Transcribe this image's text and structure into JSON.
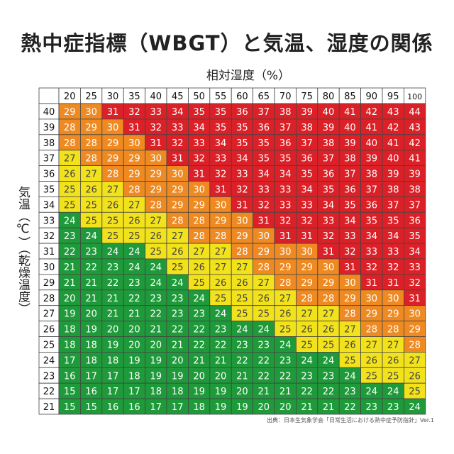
{
  "title": "熱中症指標（WBGT）と気温、湿度の関係",
  "source": "出典：日本生気象学会「日常生活における熱中症予防指針」Ver.1",
  "colors": {
    "green": "#1f9a3b",
    "yellow": "#f2e21b",
    "orange": "#ef8a22",
    "red": "#dc2027",
    "border": "#444444"
  },
  "chart_data": {
    "type": "heatmap",
    "title": "熱中症指標（WBGT）と気温、湿度の関係",
    "xlabel": "相対湿度（%）",
    "ylabel": "気温（℃）（乾燥温度）",
    "x": [
      20,
      25,
      30,
      35,
      40,
      45,
      50,
      55,
      60,
      65,
      70,
      75,
      80,
      85,
      90,
      95,
      100
    ],
    "y": [
      40,
      39,
      38,
      37,
      36,
      35,
      34,
      33,
      32,
      31,
      30,
      29,
      28,
      27,
      26,
      25,
      24,
      23,
      22,
      21
    ],
    "values": [
      [
        29,
        30,
        31,
        32,
        33,
        34,
        35,
        35,
        36,
        37,
        38,
        39,
        40,
        41,
        42,
        43,
        44
      ],
      [
        28,
        29,
        30,
        31,
        32,
        33,
        34,
        35,
        35,
        36,
        37,
        38,
        39,
        40,
        41,
        42,
        43
      ],
      [
        28,
        28,
        29,
        30,
        31,
        32,
        33,
        34,
        35,
        35,
        36,
        37,
        38,
        39,
        40,
        41,
        42
      ],
      [
        27,
        28,
        29,
        29,
        30,
        31,
        32,
        33,
        34,
        35,
        35,
        36,
        37,
        38,
        39,
        40,
        41
      ],
      [
        26,
        27,
        28,
        29,
        29,
        30,
        31,
        32,
        33,
        34,
        34,
        35,
        36,
        37,
        38,
        39,
        39
      ],
      [
        25,
        26,
        27,
        28,
        29,
        29,
        30,
        31,
        32,
        33,
        33,
        34,
        35,
        36,
        37,
        38,
        38
      ],
      [
        25,
        25,
        26,
        27,
        28,
        29,
        29,
        30,
        31,
        32,
        33,
        33,
        34,
        35,
        36,
        37,
        37
      ],
      [
        24,
        25,
        25,
        26,
        27,
        28,
        28,
        29,
        30,
        31,
        32,
        32,
        33,
        34,
        35,
        35,
        36
      ],
      [
        23,
        24,
        25,
        25,
        26,
        27,
        28,
        28,
        29,
        30,
        31,
        31,
        32,
        33,
        34,
        34,
        35
      ],
      [
        22,
        23,
        24,
        24,
        25,
        26,
        27,
        27,
        28,
        29,
        30,
        30,
        31,
        32,
        33,
        33,
        34
      ],
      [
        21,
        22,
        23,
        24,
        24,
        25,
        26,
        27,
        27,
        28,
        29,
        29,
        30,
        31,
        32,
        32,
        33
      ],
      [
        21,
        21,
        22,
        23,
        24,
        24,
        25,
        26,
        26,
        27,
        28,
        29,
        29,
        30,
        31,
        31,
        32
      ],
      [
        20,
        21,
        21,
        22,
        23,
        23,
        24,
        25,
        25,
        26,
        27,
        28,
        28,
        29,
        30,
        30,
        31
      ],
      [
        19,
        20,
        21,
        21,
        22,
        23,
        23,
        24,
        25,
        25,
        26,
        27,
        27,
        28,
        29,
        29,
        30
      ],
      [
        18,
        19,
        20,
        20,
        21,
        22,
        22,
        23,
        24,
        24,
        25,
        26,
        26,
        27,
        28,
        28,
        29
      ],
      [
        18,
        18,
        19,
        20,
        20,
        21,
        22,
        22,
        23,
        23,
        24,
        25,
        25,
        26,
        27,
        27,
        28
      ],
      [
        17,
        18,
        18,
        19,
        19,
        20,
        21,
        21,
        22,
        22,
        23,
        24,
        24,
        25,
        26,
        26,
        27
      ],
      [
        16,
        17,
        17,
        18,
        19,
        19,
        20,
        20,
        21,
        22,
        22,
        23,
        23,
        24,
        25,
        25,
        26
      ],
      [
        15,
        16,
        17,
        17,
        18,
        18,
        19,
        19,
        20,
        21,
        21,
        22,
        22,
        23,
        24,
        24,
        25
      ],
      [
        15,
        15,
        16,
        16,
        17,
        17,
        18,
        19,
        19,
        20,
        20,
        21,
        21,
        22,
        23,
        23,
        24
      ]
    ],
    "color_thresholds": {
      "green_max": 24,
      "yellow_max": 27,
      "orange_max": 30
    }
  }
}
